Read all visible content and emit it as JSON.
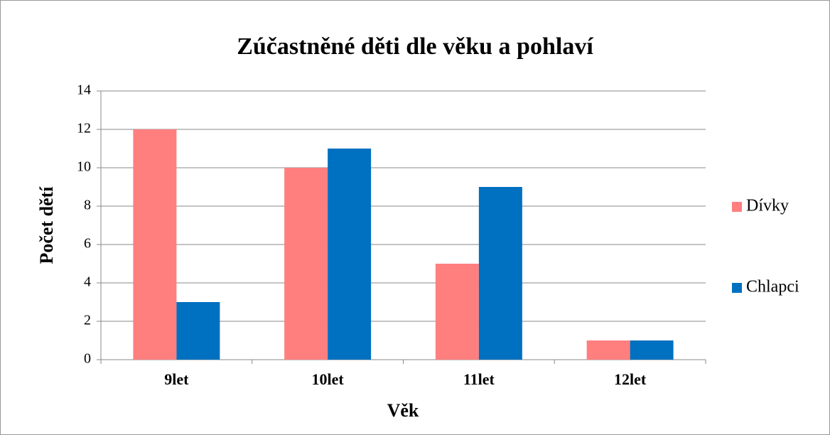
{
  "chart_data": {
    "type": "bar",
    "title": "Zúčastněné děti dle věku a pohlaví",
    "xlabel": "Věk",
    "ylabel": "Počet dětí",
    "categories": [
      "9let",
      "10let",
      "11let",
      "12let"
    ],
    "series": [
      {
        "name": "Dívky",
        "color": "#ff7f7f",
        "values": [
          12,
          10,
          5,
          1
        ]
      },
      {
        "name": "Chlapci",
        "color": "#0070c0",
        "values": [
          3,
          11,
          9,
          1
        ]
      }
    ],
    "ylim": [
      0,
      14
    ],
    "yticks": [
      0,
      2,
      4,
      6,
      8,
      10,
      12,
      14
    ],
    "grid": true,
    "legend": "right"
  }
}
